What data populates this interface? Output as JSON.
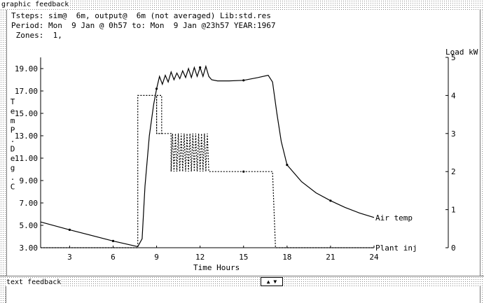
{
  "window": {
    "graphic_label": "graphic feedback",
    "text_label": "text feedback",
    "splitter_label": "▲ ▼"
  },
  "header": {
    "line1": "Tsteps: sim@  6m, output@  6m (not averaged) Lib:std.res",
    "line2": "Period: Mon  9 Jan @ 0h57 to: Mon  9 Jan @23h57 YEAR:1967",
    "line3": " Zones:  1,"
  },
  "chart_data": {
    "type": "line",
    "xlabel": "Time Hours",
    "ylabel": "TemP Deg C",
    "ylabel_chars": [
      "T",
      "e",
      "m",
      "P",
      ".",
      "D",
      "e",
      "g",
      ".",
      "C"
    ],
    "y2label": "Load kW",
    "xlim": [
      1,
      24
    ],
    "ylim": [
      3,
      20
    ],
    "y2lim": [
      0,
      5
    ],
    "x_ticks": [
      3,
      6,
      9,
      12,
      15,
      18,
      21,
      24
    ],
    "x_tick_labels": [
      "3",
      "6",
      "9",
      "12",
      "15",
      "18",
      "21",
      "24"
    ],
    "y_ticks": [
      3,
      5,
      7,
      9,
      11,
      13,
      15,
      17,
      19
    ],
    "y_tick_labels": [
      "3.00",
      "5.00",
      "7.00",
      "9.00",
      "11.00",
      "13.00",
      "15.00",
      "17.00",
      "19.00"
    ],
    "y2_ticks": [
      0,
      1,
      2,
      3,
      4,
      5
    ],
    "y2_tick_labels": [
      "0",
      "1",
      "2",
      "3",
      "4",
      "5"
    ],
    "grid": false,
    "series": [
      {
        "name": "Air temp",
        "axis": "left",
        "style": "solid",
        "markers_at": [
          3,
          6,
          9,
          12,
          15,
          18,
          21
        ],
        "x": [
          1.0,
          3.0,
          6.0,
          7.7,
          8.0,
          8.2,
          8.5,
          8.8,
          9.0,
          9.2,
          9.4,
          9.6,
          9.8,
          10.0,
          10.2,
          10.4,
          10.6,
          10.8,
          11.0,
          11.2,
          11.4,
          11.6,
          11.8,
          12.0,
          12.2,
          12.4,
          12.6,
          12.8,
          13.2,
          14.0,
          15.0,
          16.0,
          16.7,
          17.0,
          17.3,
          17.6,
          18.0,
          19.0,
          20.0,
          21.0,
          22.0,
          23.0,
          24.0
        ],
        "values": [
          5.3,
          4.6,
          3.6,
          3.1,
          3.8,
          8.5,
          13.0,
          15.8,
          17.2,
          18.3,
          17.6,
          18.4,
          17.8,
          18.7,
          18.0,
          18.6,
          18.1,
          18.8,
          18.2,
          19.0,
          18.2,
          19.1,
          18.3,
          19.1,
          18.3,
          19.2,
          18.3,
          18.0,
          17.9,
          17.9,
          17.95,
          18.2,
          18.4,
          17.8,
          15.0,
          12.5,
          10.4,
          8.9,
          7.9,
          7.2,
          6.6,
          6.1,
          5.7
        ]
      },
      {
        "name": "Plant inj",
        "axis": "right",
        "style": "dashed",
        "markers_at": [
          15
        ],
        "x": [
          1.0,
          7.7,
          7.7,
          9.0,
          9.0,
          9.35,
          9.35,
          9.0,
          9.0,
          10.0,
          10.0,
          10.1,
          10.2,
          10.3,
          10.4,
          10.5,
          10.6,
          10.7,
          10.8,
          10.9,
          11.0,
          11.1,
          11.2,
          11.3,
          11.4,
          11.5,
          11.6,
          11.7,
          11.8,
          11.9,
          12.0,
          12.1,
          12.2,
          12.3,
          12.4,
          12.5,
          12.6,
          12.6,
          13.0,
          15.0,
          17.0,
          17.0,
          17.2,
          24.0
        ],
        "values": [
          0,
          0,
          4.0,
          4.0,
          3.0,
          3.0,
          4.0,
          4.0,
          3.0,
          3.0,
          2.0,
          3.0,
          2.0,
          3.0,
          2.0,
          3.0,
          2.0,
          3.0,
          2.0,
          3.0,
          2.0,
          3.0,
          2.0,
          3.0,
          2.0,
          3.0,
          2.0,
          3.0,
          2.0,
          3.0,
          2.0,
          3.0,
          2.0,
          3.0,
          2.0,
          3.0,
          2.0,
          2.0,
          2.0,
          2.0,
          2.0,
          2.0,
          0,
          0
        ]
      }
    ]
  }
}
